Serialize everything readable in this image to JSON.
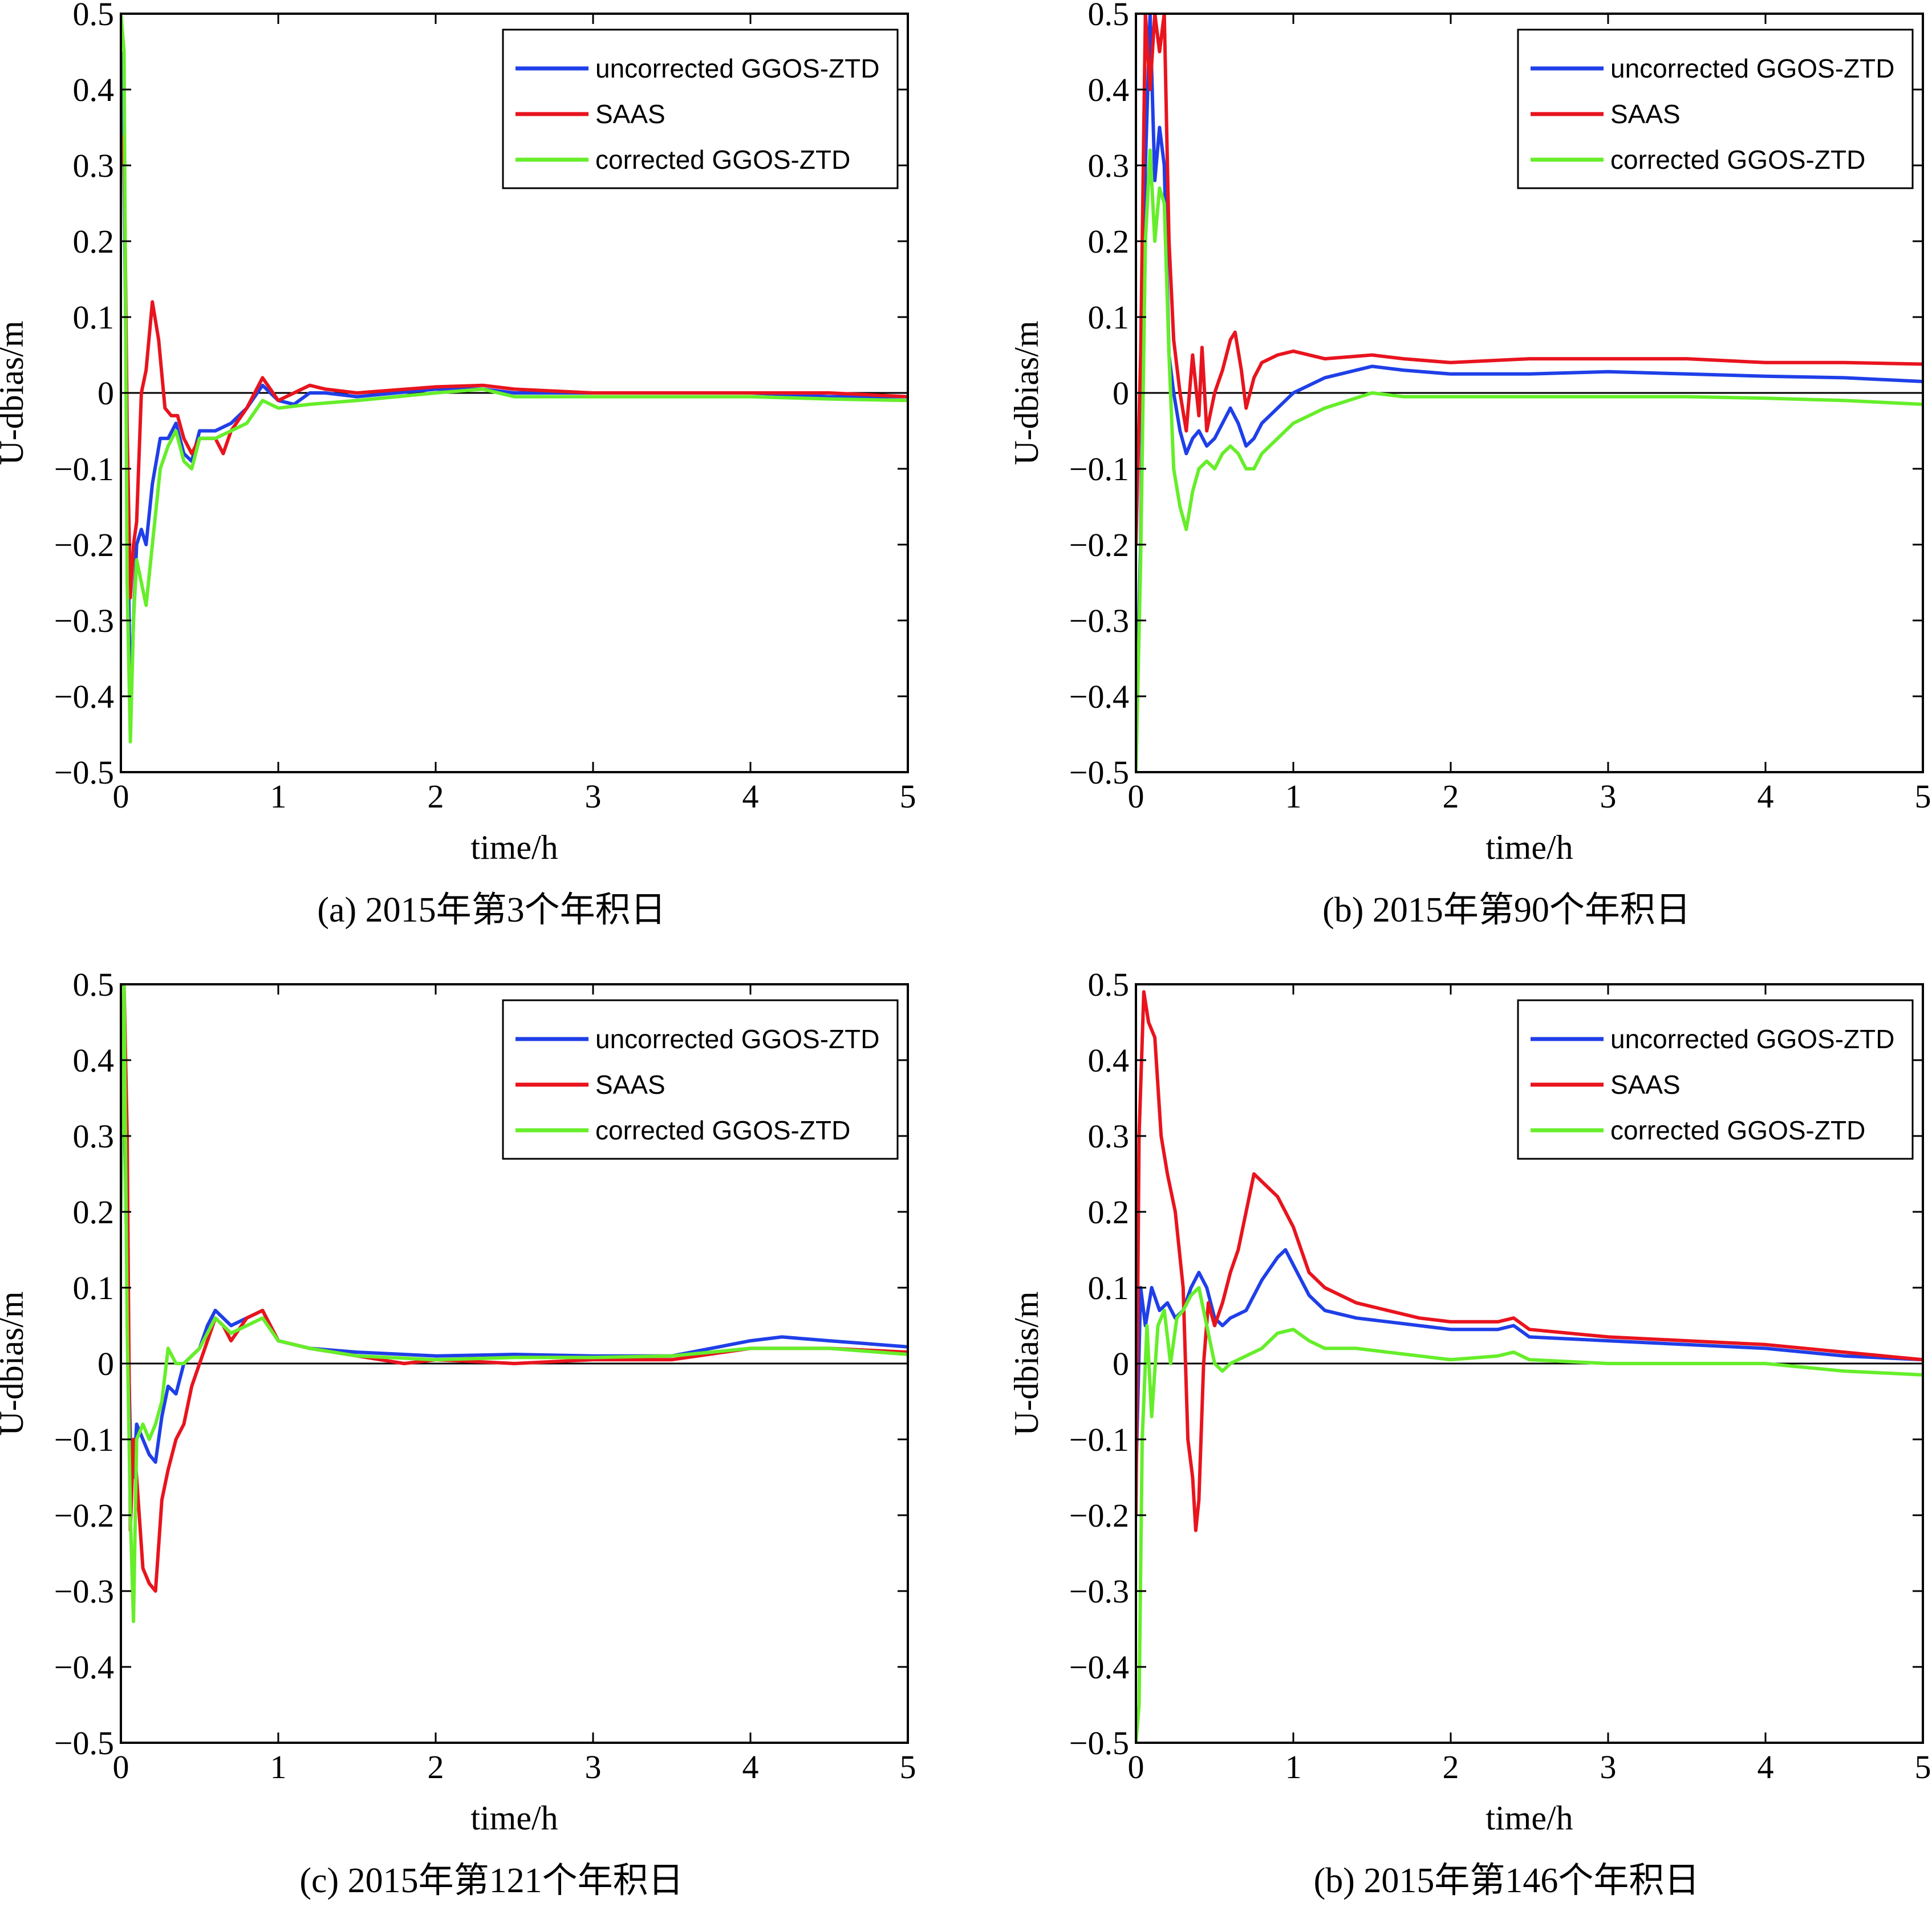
{
  "chart_data": [
    {
      "type": "line",
      "caption": "(a) 2015年第3个年积日",
      "xlabel": "time/h",
      "ylabel": "U-dbias/m",
      "xlim": [
        0,
        5
      ],
      "ylim": [
        -0.5,
        0.5
      ],
      "xticks": [
        "0",
        "1",
        "2",
        "3",
        "4",
        "5"
      ],
      "yticks": [
        "−0.5",
        "−0.4",
        "−0.3",
        "−0.2",
        "−0.1",
        "0",
        "0.1",
        "0.2",
        "0.3",
        "0.4",
        "0.5"
      ],
      "legend_position": "top-right",
      "series": [
        {
          "name": "uncorrected GGOS-ZTD",
          "color": "#1f3fe8",
          "x": [
            0,
            0.02,
            0.04,
            0.06,
            0.08,
            0.1,
            0.13,
            0.16,
            0.2,
            0.25,
            0.3,
            0.35,
            0.4,
            0.45,
            0.5,
            0.6,
            0.7,
            0.8,
            0.9,
            1.0,
            1.1,
            1.2,
            1.3,
            1.5,
            2.0,
            2.3,
            2.5,
            3.0,
            3.5,
            4.0,
            4.5,
            5.0
          ],
          "y": [
            0.45,
            0.3,
            -0.1,
            -0.43,
            -0.3,
            -0.2,
            -0.18,
            -0.2,
            -0.12,
            -0.06,
            -0.06,
            -0.04,
            -0.08,
            -0.09,
            -0.05,
            -0.05,
            -0.04,
            -0.02,
            0.01,
            -0.01,
            -0.015,
            0.0,
            0.0,
            -0.005,
            0.005,
            0.005,
            0.0,
            0.0,
            0.0,
            0.0,
            -0.005,
            -0.005
          ]
        },
        {
          "name": "SAAS",
          "color": "#e8141e",
          "x": [
            0,
            0.02,
            0.04,
            0.06,
            0.08,
            0.1,
            0.13,
            0.16,
            0.2,
            0.24,
            0.28,
            0.32,
            0.36,
            0.4,
            0.45,
            0.5,
            0.6,
            0.65,
            0.7,
            0.8,
            0.9,
            1.0,
            1.1,
            1.2,
            1.3,
            1.5,
            2.0,
            2.3,
            2.5,
            3.0,
            3.5,
            4.0,
            4.5,
            5.0
          ],
          "y": [
            0.3,
            0.34,
            -0.05,
            -0.27,
            -0.2,
            -0.17,
            0.0,
            0.03,
            0.12,
            0.07,
            -0.02,
            -0.03,
            -0.03,
            -0.06,
            -0.08,
            -0.06,
            -0.06,
            -0.08,
            -0.05,
            -0.02,
            0.02,
            -0.01,
            0.0,
            0.01,
            0.005,
            0.0,
            0.008,
            0.01,
            0.005,
            0.0,
            0.0,
            0.0,
            0.0,
            -0.005
          ]
        },
        {
          "name": "corrected GGOS-ZTD",
          "color": "#66ee2a",
          "x": [
            0,
            0.02,
            0.04,
            0.06,
            0.08,
            0.1,
            0.13,
            0.16,
            0.2,
            0.25,
            0.3,
            0.35,
            0.4,
            0.45,
            0.5,
            0.6,
            0.7,
            0.8,
            0.9,
            1.0,
            1.2,
            1.5,
            2.0,
            2.3,
            2.5,
            3.0,
            3.5,
            4.0,
            4.5,
            5.0
          ],
          "y": [
            0.5,
            0.45,
            -0.25,
            -0.46,
            -0.3,
            -0.22,
            -0.25,
            -0.28,
            -0.2,
            -0.1,
            -0.07,
            -0.05,
            -0.09,
            -0.1,
            -0.06,
            -0.06,
            -0.05,
            -0.04,
            -0.01,
            -0.02,
            -0.015,
            -0.01,
            0.0,
            0.005,
            -0.005,
            -0.005,
            -0.005,
            -0.005,
            -0.008,
            -0.01
          ]
        }
      ]
    },
    {
      "type": "line",
      "caption": "(b) 2015年第90个年积日",
      "xlabel": "time/h",
      "ylabel": "U-dbias/m",
      "xlim": [
        0,
        5
      ],
      "ylim": [
        -0.5,
        0.5
      ],
      "xticks": [
        "0",
        "1",
        "2",
        "3",
        "4",
        "5"
      ],
      "yticks": [
        "−0.5",
        "−0.4",
        "−0.3",
        "−0.2",
        "−0.1",
        "0",
        "0.1",
        "0.2",
        "0.3",
        "0.4",
        "0.5"
      ],
      "legend_position": "top-right",
      "series": [
        {
          "name": "uncorrected GGOS-ZTD",
          "color": "#1f3fe8",
          "x": [
            0,
            0.03,
            0.06,
            0.09,
            0.12,
            0.15,
            0.18,
            0.21,
            0.24,
            0.28,
            0.32,
            0.36,
            0.4,
            0.45,
            0.5,
            0.55,
            0.6,
            0.65,
            0.7,
            0.75,
            0.8,
            0.9,
            1.0,
            1.2,
            1.5,
            1.7,
            2.0,
            2.5,
            3.0,
            3.5,
            4.0,
            4.5,
            5.0
          ],
          "y": [
            -0.45,
            -0.2,
            0.3,
            0.5,
            0.28,
            0.35,
            0.3,
            0.05,
            0.0,
            -0.05,
            -0.08,
            -0.06,
            -0.05,
            -0.07,
            -0.06,
            -0.04,
            -0.02,
            -0.04,
            -0.07,
            -0.06,
            -0.04,
            -0.02,
            0.0,
            0.02,
            0.035,
            0.03,
            0.025,
            0.025,
            0.028,
            0.025,
            0.022,
            0.02,
            0.015
          ]
        },
        {
          "name": "SAAS",
          "color": "#e8141e",
          "x": [
            0,
            0.03,
            0.06,
            0.09,
            0.12,
            0.15,
            0.18,
            0.21,
            0.24,
            0.28,
            0.32,
            0.36,
            0.4,
            0.42,
            0.45,
            0.5,
            0.55,
            0.6,
            0.63,
            0.67,
            0.7,
            0.75,
            0.8,
            0.9,
            1.0,
            1.2,
            1.5,
            1.7,
            2.0,
            2.5,
            3.0,
            3.5,
            4.0,
            4.5,
            5.0
          ],
          "y": [
            -0.2,
            0.05,
            0.5,
            0.4,
            0.5,
            0.45,
            0.5,
            0.2,
            0.07,
            0.0,
            -0.05,
            0.05,
            -0.03,
            0.06,
            -0.05,
            0.0,
            0.03,
            0.07,
            0.08,
            0.03,
            -0.02,
            0.02,
            0.04,
            0.05,
            0.055,
            0.045,
            0.05,
            0.045,
            0.04,
            0.045,
            0.045,
            0.045,
            0.04,
            0.04,
            0.038
          ]
        },
        {
          "name": "corrected GGOS-ZTD",
          "color": "#66ee2a",
          "x": [
            0,
            0.03,
            0.06,
            0.09,
            0.12,
            0.15,
            0.18,
            0.21,
            0.24,
            0.28,
            0.32,
            0.36,
            0.4,
            0.45,
            0.5,
            0.55,
            0.6,
            0.65,
            0.7,
            0.75,
            0.8,
            0.9,
            1.0,
            1.2,
            1.5,
            1.7,
            2.0,
            2.5,
            3.0,
            3.5,
            4.0,
            4.5,
            5.0
          ],
          "y": [
            -0.5,
            -0.22,
            0.2,
            0.32,
            0.2,
            0.27,
            0.25,
            0.05,
            -0.1,
            -0.15,
            -0.18,
            -0.13,
            -0.1,
            -0.09,
            -0.1,
            -0.08,
            -0.07,
            -0.08,
            -0.1,
            -0.1,
            -0.08,
            -0.06,
            -0.04,
            -0.02,
            0.0,
            -0.005,
            -0.005,
            -0.005,
            -0.005,
            -0.005,
            -0.007,
            -0.01,
            -0.015
          ]
        }
      ]
    },
    {
      "type": "line",
      "caption": "(c) 2015年第121个年积日",
      "xlabel": "time/h",
      "ylabel": "U-dbias/m",
      "xlim": [
        0,
        5
      ],
      "ylim": [
        -0.5,
        0.5
      ],
      "xticks": [
        "0",
        "1",
        "2",
        "3",
        "4",
        "5"
      ],
      "yticks": [
        "−0.5",
        "−0.4",
        "−0.3",
        "−0.2",
        "−0.1",
        "0",
        "0.1",
        "0.2",
        "0.3",
        "0.4",
        "0.5"
      ],
      "legend_position": "top-right",
      "series": [
        {
          "name": "uncorrected GGOS-ZTD",
          "color": "#1f3fe8",
          "x": [
            0,
            0.02,
            0.04,
            0.06,
            0.08,
            0.1,
            0.14,
            0.18,
            0.22,
            0.26,
            0.3,
            0.35,
            0.4,
            0.45,
            0.5,
            0.55,
            0.6,
            0.65,
            0.7,
            0.8,
            0.9,
            1.0,
            1.2,
            1.5,
            2.0,
            2.5,
            3.0,
            3.5,
            4.0,
            4.2,
            4.5,
            5.0
          ],
          "y": [
            0.3,
            0.4,
            0.1,
            -0.1,
            -0.15,
            -0.08,
            -0.1,
            -0.12,
            -0.13,
            -0.07,
            -0.03,
            -0.04,
            0.0,
            0.01,
            0.02,
            0.05,
            0.07,
            0.06,
            0.05,
            0.06,
            0.07,
            0.03,
            0.02,
            0.015,
            0.01,
            0.012,
            0.01,
            0.01,
            0.03,
            0.035,
            0.03,
            0.022
          ]
        },
        {
          "name": "SAAS",
          "color": "#e8141e",
          "x": [
            0,
            0.02,
            0.04,
            0.06,
            0.08,
            0.1,
            0.14,
            0.18,
            0.22,
            0.26,
            0.3,
            0.35,
            0.4,
            0.45,
            0.5,
            0.55,
            0.6,
            0.65,
            0.7,
            0.8,
            0.9,
            1.0,
            1.2,
            1.5,
            1.8,
            2.0,
            2.5,
            3.0,
            3.5,
            4.0,
            4.5,
            5.0
          ],
          "y": [
            0.5,
            0.5,
            0.3,
            -0.22,
            -0.1,
            -0.15,
            -0.27,
            -0.29,
            -0.3,
            -0.18,
            -0.14,
            -0.1,
            -0.08,
            -0.03,
            0.0,
            0.03,
            0.06,
            0.05,
            0.03,
            0.06,
            0.07,
            0.03,
            0.02,
            0.01,
            0.0,
            0.005,
            0.0,
            0.005,
            0.005,
            0.02,
            0.02,
            0.015
          ]
        },
        {
          "name": "corrected GGOS-ZTD",
          "color": "#66ee2a",
          "x": [
            0,
            0.02,
            0.04,
            0.06,
            0.08,
            0.1,
            0.14,
            0.18,
            0.22,
            0.26,
            0.3,
            0.35,
            0.4,
            0.45,
            0.5,
            0.55,
            0.6,
            0.65,
            0.7,
            0.8,
            0.9,
            1.0,
            1.2,
            1.5,
            2.0,
            2.5,
            3.0,
            3.5,
            4.0,
            4.5,
            5.0
          ],
          "y": [
            0.2,
            0.5,
            0.05,
            -0.2,
            -0.34,
            -0.1,
            -0.08,
            -0.1,
            -0.08,
            -0.05,
            0.02,
            0.0,
            0.0,
            0.01,
            0.02,
            0.04,
            0.06,
            0.05,
            0.04,
            0.05,
            0.06,
            0.03,
            0.02,
            0.01,
            0.005,
            0.008,
            0.008,
            0.01,
            0.02,
            0.02,
            0.012
          ]
        }
      ]
    },
    {
      "type": "line",
      "caption": "(b) 2015年第146个年积日",
      "xlabel": "time/h",
      "ylabel": "U-dbias/m",
      "xlim": [
        0,
        5
      ],
      "ylim": [
        -0.5,
        0.5
      ],
      "xticks": [
        "0",
        "1",
        "2",
        "3",
        "4",
        "5"
      ],
      "yticks": [
        "−0.5",
        "−0.4",
        "−0.3",
        "−0.2",
        "−0.1",
        "0",
        "0.1",
        "0.2",
        "0.3",
        "0.4",
        "0.5"
      ],
      "legend_position": "top-right",
      "series": [
        {
          "name": "uncorrected GGOS-ZTD",
          "color": "#1f3fe8",
          "x": [
            0,
            0.03,
            0.06,
            0.1,
            0.15,
            0.2,
            0.25,
            0.3,
            0.35,
            0.4,
            0.45,
            0.5,
            0.55,
            0.6,
            0.7,
            0.8,
            0.9,
            0.95,
            1.0,
            1.1,
            1.2,
            1.4,
            1.6,
            1.8,
            2.0,
            2.3,
            2.4,
            2.5,
            3.0,
            3.5,
            4.0,
            4.5,
            5.0
          ],
          "y": [
            -0.15,
            0.1,
            0.05,
            0.1,
            0.07,
            0.08,
            0.06,
            0.07,
            0.1,
            0.12,
            0.1,
            0.06,
            0.05,
            0.06,
            0.07,
            0.11,
            0.14,
            0.15,
            0.13,
            0.09,
            0.07,
            0.06,
            0.055,
            0.05,
            0.045,
            0.045,
            0.05,
            0.035,
            0.03,
            0.025,
            0.02,
            0.01,
            0.005
          ]
        },
        {
          "name": "SAAS",
          "color": "#e8141e",
          "x": [
            0,
            0.02,
            0.05,
            0.08,
            0.12,
            0.16,
            0.2,
            0.25,
            0.3,
            0.33,
            0.36,
            0.38,
            0.4,
            0.43,
            0.46,
            0.5,
            0.55,
            0.6,
            0.65,
            0.7,
            0.75,
            0.8,
            0.9,
            1.0,
            1.1,
            1.2,
            1.4,
            1.6,
            1.8,
            2.0,
            2.3,
            2.4,
            2.5,
            3.0,
            3.5,
            4.0,
            4.5,
            5.0
          ],
          "y": [
            -0.2,
            0.3,
            0.49,
            0.45,
            0.43,
            0.3,
            0.25,
            0.2,
            0.1,
            -0.1,
            -0.15,
            -0.22,
            -0.18,
            0.0,
            0.08,
            0.05,
            0.08,
            0.12,
            0.15,
            0.2,
            0.25,
            0.24,
            0.22,
            0.18,
            0.12,
            0.1,
            0.08,
            0.07,
            0.06,
            0.055,
            0.055,
            0.06,
            0.045,
            0.035,
            0.03,
            0.025,
            0.015,
            0.005
          ]
        },
        {
          "name": "corrected GGOS-ZTD",
          "color": "#66ee2a",
          "x": [
            0,
            0.02,
            0.04,
            0.07,
            0.1,
            0.14,
            0.18,
            0.22,
            0.26,
            0.3,
            0.35,
            0.4,
            0.45,
            0.5,
            0.55,
            0.6,
            0.7,
            0.8,
            0.9,
            1.0,
            1.1,
            1.2,
            1.4,
            1.6,
            1.8,
            2.0,
            2.3,
            2.4,
            2.5,
            3.0,
            3.5,
            4.0,
            4.5,
            5.0
          ],
          "y": [
            -0.5,
            -0.45,
            -0.1,
            0.05,
            -0.07,
            0.05,
            0.07,
            0.0,
            0.06,
            0.07,
            0.09,
            0.1,
            0.05,
            0.0,
            -0.01,
            0.0,
            0.01,
            0.02,
            0.04,
            0.045,
            0.03,
            0.02,
            0.02,
            0.015,
            0.01,
            0.005,
            0.01,
            0.015,
            0.005,
            0.0,
            0.0,
            0.0,
            -0.01,
            -0.015
          ]
        }
      ]
    }
  ]
}
